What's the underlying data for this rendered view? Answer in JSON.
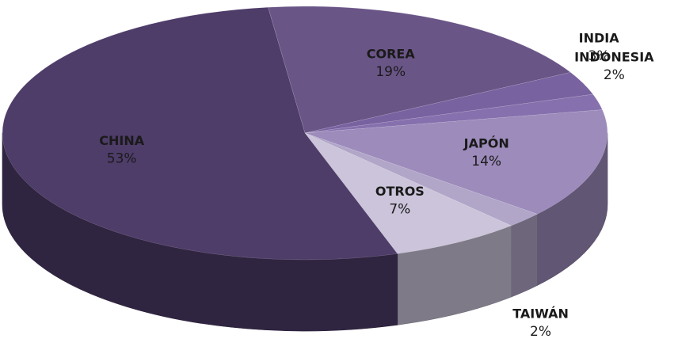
{
  "chart_data": {
    "type": "pie3d",
    "categories": [
      "COREA",
      "INDIA",
      "INDONESIA",
      "JAPÓN",
      "TAIWÁN",
      "OTROS",
      "CHINA"
    ],
    "values": [
      19,
      3,
      2,
      14,
      2,
      7,
      53
    ],
    "value_labels": [
      "19%",
      "3%",
      "2%",
      "14%",
      "2%",
      "7%",
      "53%"
    ],
    "colors": [
      "#6a5587",
      "#7962a0",
      "#8670ad",
      "#9c8bbb",
      "#b1a6c8",
      "#cbc4da",
      "#4e3c69"
    ]
  }
}
